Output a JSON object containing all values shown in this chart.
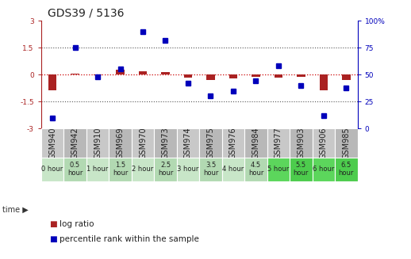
{
  "title": "GDS39 / 5136",
  "samples": [
    "GSM940",
    "GSM942",
    "GSM910",
    "GSM969",
    "GSM970",
    "GSM973",
    "GSM974",
    "GSM975",
    "GSM976",
    "GSM984",
    "GSM977",
    "GSM903",
    "GSM906",
    "GSM985"
  ],
  "time_labels": [
    "0 hour",
    "0.5\nhour",
    "1 hour",
    "1.5\nhour",
    "2 hour",
    "2.5\nhour",
    "3 hour",
    "3.5\nhour",
    "4 hour",
    "4.5\nhour",
    "5 hour",
    "5.5\nhour",
    "6 hour",
    "6.5\nhour"
  ],
  "time_colors": [
    "#c8e6c8",
    "#b2d9b2",
    "#c8e6c8",
    "#b2d9b2",
    "#c8e6c8",
    "#b2d9b2",
    "#c8e6c8",
    "#b2d9b2",
    "#c8e6c8",
    "#b2d9b2",
    "#5cd65c",
    "#4dcc4d",
    "#5cd65c",
    "#4dcc4d"
  ],
  "log_ratio": [
    -0.85,
    0.07,
    -0.05,
    0.28,
    0.18,
    0.15,
    -0.18,
    -0.28,
    -0.22,
    -0.12,
    -0.15,
    -0.12,
    -0.85,
    -0.28
  ],
  "percentile": [
    10,
    75,
    48,
    55,
    90,
    82,
    42,
    30,
    35,
    44,
    58,
    40,
    12,
    38
  ],
  "ylim_left": [
    -3,
    3
  ],
  "ylim_right": [
    0,
    100
  ],
  "yticks_left": [
    -3,
    -1.5,
    0,
    1.5,
    3
  ],
  "yticks_right": [
    0,
    25,
    50,
    75,
    100
  ],
  "bar_color": "#aa2222",
  "dot_color": "#0000bb",
  "hline_color": "#cc0000",
  "bg_color": "#ffffff",
  "title_fontsize": 10,
  "label_fontsize": 7,
  "tick_fontsize": 6.5,
  "legend_fontsize": 7.5,
  "sample_bg": "#c0c0c0"
}
